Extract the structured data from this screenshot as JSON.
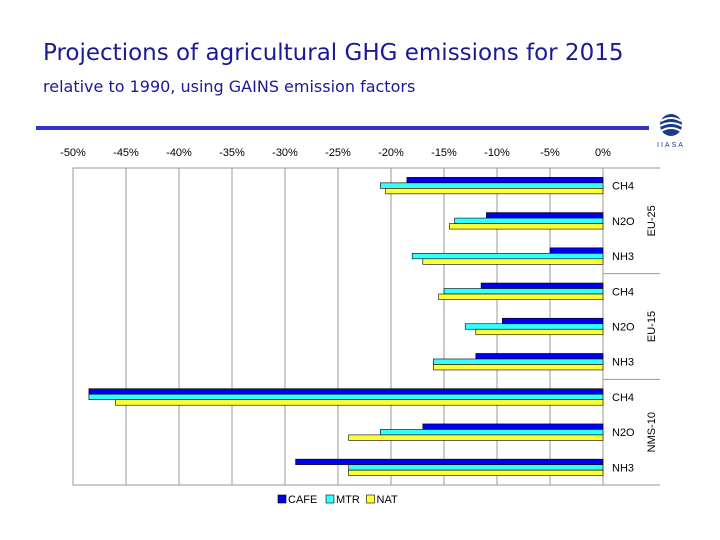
{
  "header": {
    "title": "Projections of agricultural GHG emissions for 2015",
    "subtitle": "relative to 1990, using GAINS emission factors"
  },
  "logo": {
    "icon": "iiasa-globe-icon",
    "text": "IIASA"
  },
  "colors": {
    "title": "#1a1a99",
    "rule": "#3333cc",
    "CAFE": "#0000ee",
    "MTR": "#33ffff",
    "NAT": "#ffff33"
  },
  "chart_data": {
    "type": "bar",
    "orientation": "horizontal",
    "title": "",
    "xlabel": "",
    "ylabel": "",
    "xlim": [
      -50,
      0
    ],
    "x_ticks": [
      "-50%",
      "-45%",
      "-40%",
      "-35%",
      "-30%",
      "-25%",
      "-20%",
      "-15%",
      "-10%",
      "-5%",
      "0%"
    ],
    "x_tick_values": [
      -50,
      -45,
      -40,
      -35,
      -30,
      -25,
      -20,
      -15,
      -10,
      -5,
      0
    ],
    "grid": true,
    "legend_position": "bottom",
    "series_names": [
      "CAFE",
      "MTR",
      "NAT"
    ],
    "groups": [
      {
        "name": "EU-25",
        "categories": [
          {
            "label": "CH4",
            "values": {
              "CAFE": -18.5,
              "MTR": -21,
              "NAT": -20.5
            }
          },
          {
            "label": "N2O",
            "values": {
              "CAFE": -11,
              "MTR": -14,
              "NAT": -14.5
            }
          },
          {
            "label": "NH3",
            "values": {
              "CAFE": -5,
              "MTR": -18,
              "NAT": -17
            }
          }
        ]
      },
      {
        "name": "EU-15",
        "categories": [
          {
            "label": "CH4",
            "values": {
              "CAFE": -11.5,
              "MTR": -15,
              "NAT": -15.5
            }
          },
          {
            "label": "N2O",
            "values": {
              "CAFE": -9.5,
              "MTR": -13,
              "NAT": -12
            }
          },
          {
            "label": "NH3",
            "values": {
              "CAFE": -12,
              "MTR": -16,
              "NAT": -16
            }
          }
        ]
      },
      {
        "name": "NMS-10",
        "categories": [
          {
            "label": "CH4",
            "values": {
              "CAFE": -48.5,
              "MTR": -48.5,
              "NAT": -46
            }
          },
          {
            "label": "N2O",
            "values": {
              "CAFE": -17,
              "MTR": -21,
              "NAT": -24
            }
          },
          {
            "label": "NH3",
            "values": {
              "CAFE": -29,
              "MTR": -24,
              "NAT": -24
            }
          }
        ]
      }
    ]
  }
}
